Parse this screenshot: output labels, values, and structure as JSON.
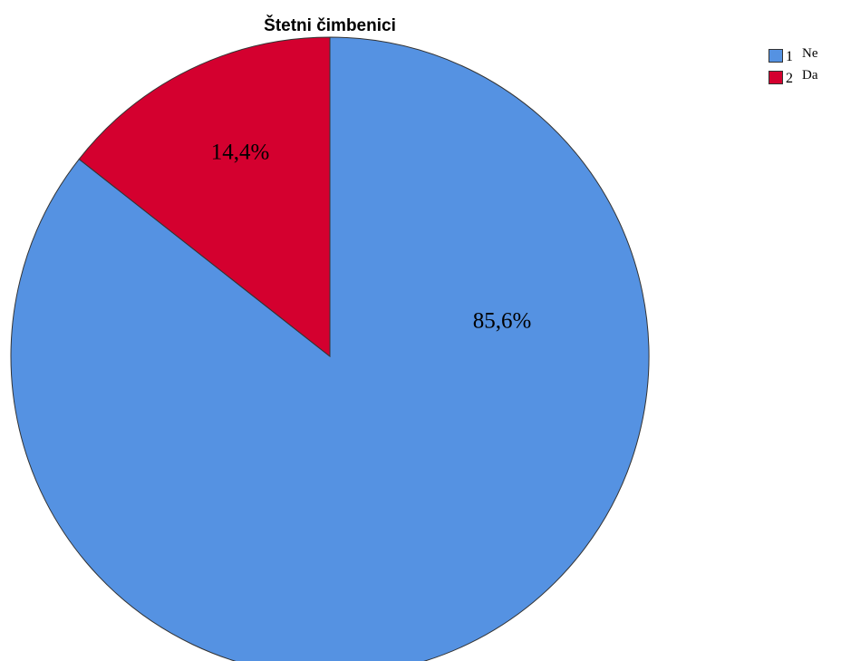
{
  "chart_data": {
    "type": "pie",
    "title": "Štetni čimbenici",
    "slices": [
      {
        "code": "1",
        "label": "Ne",
        "value": 85.6,
        "display": "85,6%",
        "color": "#5592E2"
      },
      {
        "code": "2",
        "label": "Da",
        "value": 14.4,
        "display": "14,4%",
        "color": "#D4002F"
      }
    ],
    "start_angle_deg": 0,
    "direction": "clockwise",
    "legend_position": "top-right"
  }
}
